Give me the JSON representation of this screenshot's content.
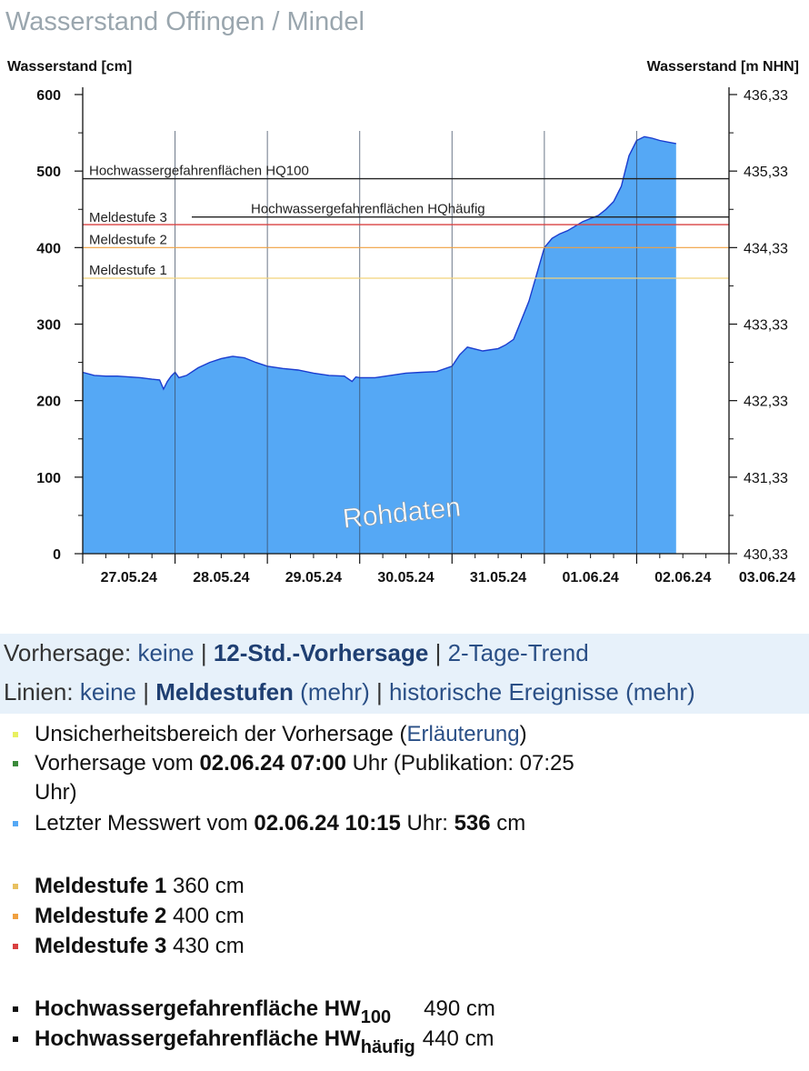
{
  "page": {
    "title": "Wasserstand Offingen / Mindel"
  },
  "chart_data": {
    "type": "area",
    "ylabel_left": "Wasserstand [cm]",
    "ylabel_right": "Wasserstand [m NHN]",
    "ylim": [
      0,
      600
    ],
    "y_ticks_left": [
      "600",
      "500",
      "400",
      "300",
      "200",
      "100",
      "0"
    ],
    "y_ticks_right": [
      "436,33",
      "435,33",
      "434,33",
      "433,33",
      "432,33",
      "431,33",
      "430,33"
    ],
    "x_ticks": [
      "27.05.24",
      "28.05.24",
      "29.05.24",
      "30.05.24",
      "31.05.24",
      "01.06.24",
      "02.06.24",
      "03.06.24"
    ],
    "x_start": "27.05.24 00:00",
    "watermark": "Rohdaten",
    "fill_color": "#55a8f5",
    "line_color": "#1a3ccf",
    "series": [
      {
        "x": [
          "27.05.24 00:00",
          "27.05.24 03:00",
          "27.05.24 06:00",
          "27.05.24 09:00",
          "27.05.24 12:00",
          "27.05.24 15:00",
          "27.05.24 18:00",
          "27.05.24 20:00",
          "27.05.24 21:00",
          "27.05.24 22:00",
          "27.05.24 23:00",
          "28.05.24 00:00",
          "28.05.24 01:00",
          "28.05.24 03:00",
          "28.05.24 06:00",
          "28.05.24 09:00",
          "28.05.24 12:00",
          "28.05.24 15:00",
          "28.05.24 18:00",
          "28.05.24 21:00",
          "29.05.24 00:00",
          "29.05.24 04:00",
          "29.05.24 08:00",
          "29.05.24 12:00",
          "29.05.24 16:00",
          "29.05.24 20:00",
          "29.05.24 22:00",
          "29.05.24 23:00",
          "30.05.24 00:00",
          "30.05.24 04:00",
          "30.05.24 08:00",
          "30.05.24 12:00",
          "30.05.24 16:00",
          "30.05.24 20:00",
          "31.05.24 00:00",
          "31.05.24 02:00",
          "31.05.24 04:00",
          "31.05.24 08:00",
          "31.05.24 12:00",
          "31.05.24 14:00",
          "31.05.24 16:00",
          "31.05.24 18:00",
          "31.05.24 20:00",
          "31.05.24 22:00",
          "01.06.24 00:00",
          "01.06.24 02:00",
          "01.06.24 04:00",
          "01.06.24 06:00",
          "01.06.24 08:00",
          "01.06.24 10:00",
          "01.06.24 12:00",
          "01.06.24 14:00",
          "01.06.24 16:00",
          "01.06.24 18:00",
          "01.06.24 20:00",
          "01.06.24 21:00",
          "01.06.24 22:00",
          "02.06.24 00:00",
          "02.06.24 02:00",
          "02.06.24 04:00",
          "02.06.24 06:00",
          "02.06.24 08:00",
          "02.06.24 10:15"
        ],
        "values": [
          237,
          233,
          232,
          232,
          231,
          230,
          228,
          227,
          215,
          225,
          232,
          237,
          230,
          233,
          243,
          250,
          255,
          258,
          256,
          250,
          245,
          242,
          240,
          236,
          233,
          232,
          225,
          231,
          230,
          230,
          233,
          236,
          237,
          238,
          245,
          260,
          270,
          265,
          268,
          273,
          280,
          305,
          330,
          365,
          400,
          412,
          418,
          422,
          428,
          434,
          438,
          442,
          450,
          460,
          480,
          500,
          520,
          540,
          545,
          543,
          540,
          538,
          536
        ]
      }
    ],
    "thresholds": [
      {
        "label": "Hochwassergefahrenflächen HQ100",
        "value": 490,
        "color": "#222222"
      },
      {
        "label": "Hochwassergefahrenflächen HQhäufig",
        "value": 440,
        "color": "#222222"
      },
      {
        "label": "Meldestufe 3",
        "value": 430,
        "color": "#d94040"
      },
      {
        "label": "Meldestufe 2",
        "value": 400,
        "color": "#f0a040"
      },
      {
        "label": "Meldestufe 1",
        "value": 360,
        "color": "#f2d27a"
      }
    ]
  },
  "controls": {
    "forecast": {
      "label": "Vorhersage:",
      "opt1": "keine",
      "opt2": "12-Std.-Vorhersage",
      "opt3": "2-Tage-Trend",
      "sep": "|"
    },
    "lines": {
      "label": "Linien:",
      "opt1": "keine",
      "opt2": "Meldestufen",
      "opt2_more": "(mehr)",
      "opt3": "historische Ereignisse",
      "opt3_more": "(mehr)",
      "sep": "|"
    }
  },
  "legend": {
    "uncertainty": {
      "text": "Unsicherheitsbereich der Vorhersage (",
      "link": "Erläuterung",
      "close": ")",
      "color": "#e8f060"
    },
    "forecast": {
      "pre": "Vorhersage vom ",
      "date": "02.06.24 07:00",
      "post": " Uhr (Publikation: 07:25",
      "line2": "Uhr)",
      "color": "#3a8a3a"
    },
    "last": {
      "pre": "Letzter Messwert vom ",
      "date": "02.06.24 10:15",
      "mid": " Uhr: ",
      "value": "536",
      "unit": " cm",
      "color": "#55a8f5"
    },
    "ms1": {
      "name": "Meldestufe 1",
      "value": " 360 cm",
      "color": "#e8c060"
    },
    "ms2": {
      "name": "Meldestufe 2",
      "value": " 400 cm",
      "color": "#f0a040"
    },
    "ms3": {
      "name": "Meldestufe 3",
      "value": " 430 cm",
      "color": "#d94040"
    },
    "hw100": {
      "name": "Hochwassergefahrenfläche HW",
      "sub": "100",
      "value": "490 cm",
      "color": "#111111"
    },
    "hwh": {
      "name": "Hochwassergefahrenfläche HW",
      "sub": "häufig",
      "value": "440 cm",
      "color": "#111111"
    }
  }
}
